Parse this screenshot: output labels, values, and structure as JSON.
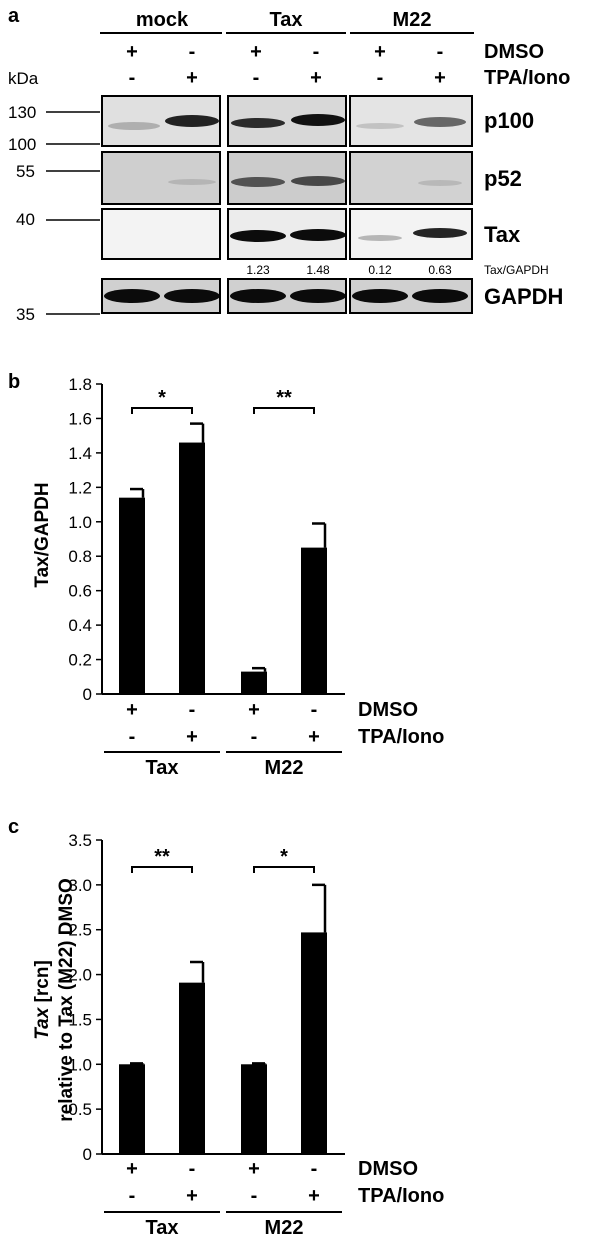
{
  "panel_a": {
    "panel_label": "a",
    "groups": [
      "mock",
      "Tax",
      "M22"
    ],
    "row_labels": [
      "DMSO",
      "TPA/Iono"
    ],
    "dmso_signs": [
      "+",
      "-",
      "+",
      "-",
      "+",
      "-"
    ],
    "tpa_signs": [
      "-",
      "+",
      "-",
      "+",
      "-",
      "+"
    ],
    "kda_label": "kDa",
    "markers": [
      "130",
      "100",
      "55",
      "40",
      "35"
    ],
    "bands": [
      "p100",
      "p52",
      "Tax",
      "GAPDH"
    ],
    "ratio_label": "Tax/GAPDH",
    "ratios": [
      "1.23",
      "1.48",
      "0.12",
      "0.63"
    ]
  },
  "chart_data": [
    {
      "type": "bar",
      "panel_label": "b",
      "ylabel": "Tax/GAPDH",
      "categories": [
        "Tax DMSO",
        "Tax TPA/Iono",
        "M22 DMSO",
        "M22 TPA/Iono"
      ],
      "values": [
        1.14,
        1.46,
        0.13,
        0.85
      ],
      "errors": [
        0.05,
        0.11,
        0.02,
        0.14
      ],
      "ylim": [
        0,
        1.8
      ],
      "yticks": [
        "0",
        "0.2",
        "0.4",
        "0.6",
        "0.8",
        "1.0",
        "1.2",
        "1.4",
        "1.6",
        "1.8"
      ],
      "significance": [
        {
          "groups": [
            0,
            1
          ],
          "label": "*"
        },
        {
          "groups": [
            2,
            3
          ],
          "label": "**"
        }
      ],
      "dmso_signs": [
        "+",
        "-",
        "+",
        "-"
      ],
      "tpa_signs": [
        "-",
        "+",
        "-",
        "+"
      ],
      "row_labels": [
        "DMSO",
        "TPA/Iono"
      ],
      "group_labels": [
        "Tax",
        "M22"
      ],
      "bar_color": "#000000"
    },
    {
      "type": "bar",
      "panel_label": "c",
      "ylabel_italic": "Tax",
      "ylabel_rest": " [rcn]",
      "ylabel_line2": "relative to Tax (M22) DMSO",
      "categories": [
        "Tax DMSO",
        "Tax TPA/Iono",
        "M22 DMSO",
        "M22 TPA/Iono"
      ],
      "values": [
        1.0,
        1.91,
        1.0,
        2.47
      ],
      "errors": [
        0.01,
        0.23,
        0.01,
        0.53
      ],
      "ylim": [
        0,
        3.5
      ],
      "yticks": [
        "0",
        "0.5",
        "1.0",
        "1.5",
        "2.0",
        "2.5",
        "3.0",
        "3.5"
      ],
      "significance": [
        {
          "groups": [
            0,
            1
          ],
          "label": "**"
        },
        {
          "groups": [
            2,
            3
          ],
          "label": "*"
        }
      ],
      "dmso_signs": [
        "+",
        "-",
        "+",
        "-"
      ],
      "tpa_signs": [
        "-",
        "+",
        "-",
        "+"
      ],
      "row_labels": [
        "DMSO",
        "TPA/Iono"
      ],
      "group_labels": [
        "Tax",
        "M22"
      ],
      "bar_color": "#000000"
    }
  ]
}
